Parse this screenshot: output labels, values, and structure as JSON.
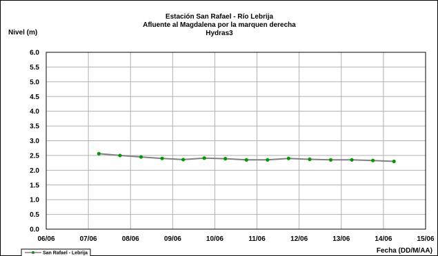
{
  "chart_data": {
    "type": "line",
    "title_lines": [
      "Estación San Rafael - Río Lebrija",
      "Afluente al Magdalena por la marquen derecha",
      "Hydras3"
    ],
    "xlabel": "Fecha (DD/M/AA)",
    "ylabel": "Nivel (m)",
    "x_ticks": [
      "06/06",
      "07/06",
      "08/06",
      "09/06",
      "10/06",
      "11/06",
      "12/06",
      "13/06",
      "14/06",
      "15/06"
    ],
    "xlim": [
      0,
      9
    ],
    "ylim": [
      0,
      6
    ],
    "y_ticks": [
      "0.0",
      "0.5",
      "1.0",
      "1.5",
      "2.0",
      "2.5",
      "3.0",
      "3.5",
      "4.0",
      "4.5",
      "5.0",
      "5.5",
      "6.0"
    ],
    "grid": true,
    "legend_position": "bottom-left",
    "series": [
      {
        "name": "San Rafael - Lebrija",
        "color": "#808080",
        "marker_color": "#009900",
        "x": [
          1.25,
          1.75,
          2.25,
          2.75,
          3.25,
          3.75,
          4.25,
          4.75,
          5.25,
          5.75,
          6.25,
          6.75,
          7.25,
          7.75,
          8.25
        ],
        "y": [
          2.56,
          2.5,
          2.45,
          2.4,
          2.36,
          2.41,
          2.39,
          2.35,
          2.35,
          2.4,
          2.37,
          2.35,
          2.35,
          2.33,
          2.3
        ]
      }
    ]
  }
}
